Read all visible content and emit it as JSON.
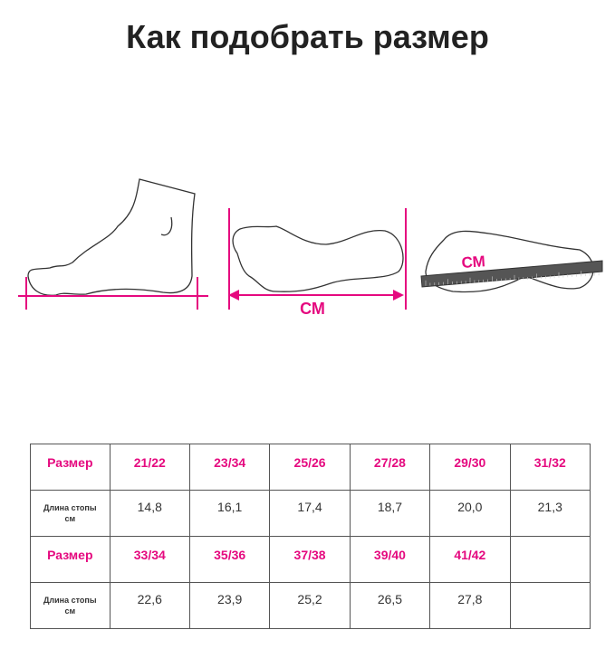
{
  "title": "Как подобрать размер",
  "illustration": {
    "unit_label_1": "СМ",
    "unit_label_2": "СМ",
    "accent": "#e5097f"
  },
  "table": {
    "size_label": "Размер",
    "length_label_1": "Длина стопы",
    "length_label_2": "см",
    "rows": [
      {
        "sizes": [
          "21/22",
          "23/34",
          "25/26",
          "27/28",
          "29/30",
          "31/32"
        ],
        "lengths": [
          "14,8",
          "16,1",
          "17,4",
          "18,7",
          "20,0",
          "21,3"
        ]
      },
      {
        "sizes": [
          "33/34",
          "35/36",
          "37/38",
          "39/40",
          "41/42",
          ""
        ],
        "lengths": [
          "22,6",
          "23,9",
          "25,2",
          "26,5",
          "27,8",
          ""
        ]
      }
    ]
  }
}
